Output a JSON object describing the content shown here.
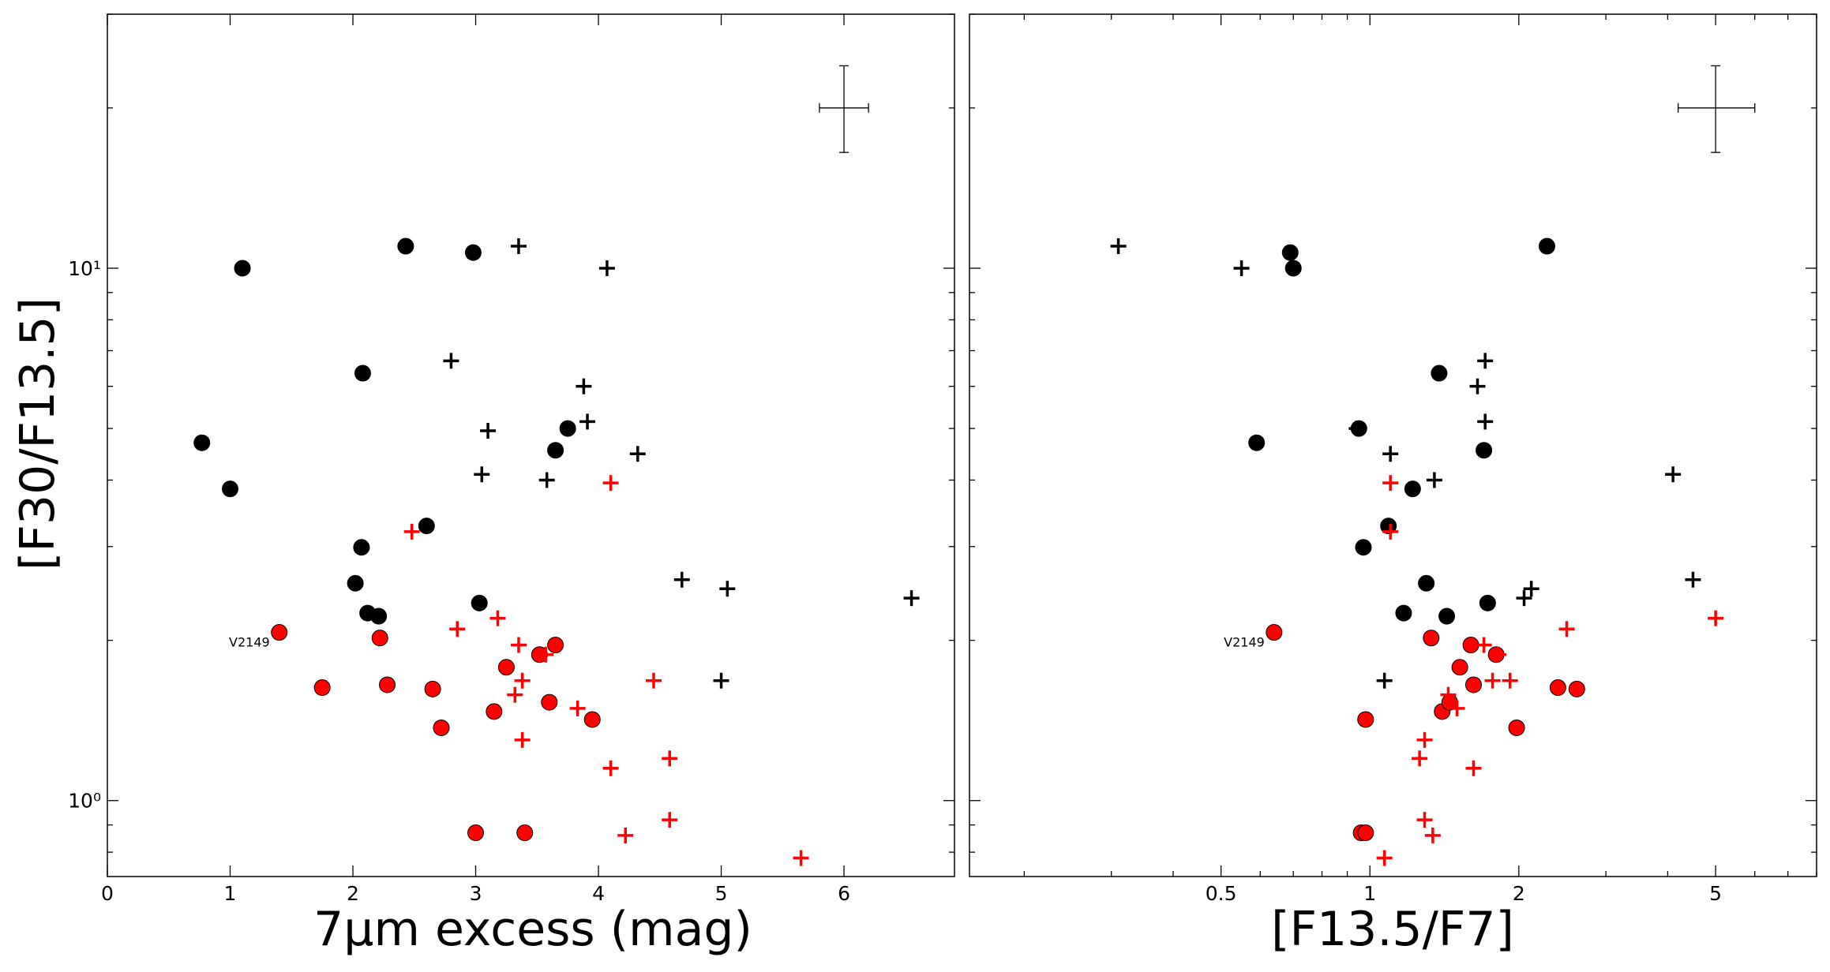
{
  "figure": {
    "colors": {
      "black": "#000000",
      "red": "#ff0000",
      "frame": "#000000"
    }
  },
  "chart_data": [
    {
      "type": "scatter",
      "panel": "left",
      "xlabel": "7μm excess (mag)",
      "ylabel": "[F30/F13.5]",
      "xscale": "linear",
      "yscale": "log",
      "xlim": [
        0,
        6.9
      ],
      "ylim": [
        0.72,
        30
      ],
      "xticks": [
        0,
        1,
        2,
        3,
        4,
        5,
        6
      ],
      "xtick_labels": [
        "0",
        "1",
        "2",
        "3",
        "4",
        "5",
        "6"
      ],
      "yticks": [
        1,
        10
      ],
      "ytick_labels": [
        "10⁰",
        "10¹"
      ],
      "grid": false,
      "annotation": {
        "text": "V2149",
        "x": 1.4,
        "y": 2.07
      },
      "error_bar": {
        "x": 6.0,
        "y": 20.0,
        "xerr": 0.2,
        "yerr_low": 3.5,
        "yerr_high": 4.0
      },
      "series": [
        {
          "name": "black-circles",
          "marker": "circle",
          "color": "#000000",
          "points": [
            [
              0.77,
              4.7
            ],
            [
              1.0,
              3.85
            ],
            [
              1.1,
              10.0
            ],
            [
              2.02,
              2.56
            ],
            [
              2.07,
              2.99
            ],
            [
              2.08,
              6.35
            ],
            [
              2.12,
              2.25
            ],
            [
              2.21,
              2.22
            ],
            [
              2.43,
              11.0
            ],
            [
              2.6,
              3.28
            ],
            [
              2.98,
              10.7
            ],
            [
              3.03,
              2.35
            ],
            [
              3.65,
              4.55
            ],
            [
              3.75,
              5.0
            ]
          ]
        },
        {
          "name": "black-crosses",
          "marker": "plus",
          "color": "#000000",
          "points": [
            [
              2.8,
              6.7
            ],
            [
              3.05,
              4.1
            ],
            [
              3.1,
              4.95
            ],
            [
              3.35,
              11.0
            ],
            [
              3.58,
              4.0
            ],
            [
              3.88,
              6.0
            ],
            [
              3.91,
              5.15
            ],
            [
              4.07,
              10.0
            ],
            [
              4.32,
              4.48
            ],
            [
              4.68,
              2.6
            ],
            [
              5.0,
              1.68
            ],
            [
              5.05,
              2.5
            ],
            [
              6.55,
              2.4
            ]
          ]
        },
        {
          "name": "red-circles",
          "marker": "circle",
          "color": "#ff0000",
          "points": [
            [
              1.4,
              2.07
            ],
            [
              1.75,
              1.63
            ],
            [
              2.22,
              2.02
            ],
            [
              2.28,
              1.65
            ],
            [
              2.65,
              1.62
            ],
            [
              2.72,
              1.37
            ],
            [
              3.0,
              0.87
            ],
            [
              3.15,
              1.47
            ],
            [
              3.25,
              1.78
            ],
            [
              3.4,
              0.87
            ],
            [
              3.52,
              1.88
            ],
            [
              3.6,
              1.53
            ],
            [
              3.65,
              1.96
            ],
            [
              3.95,
              1.42
            ]
          ]
        },
        {
          "name": "red-crosses",
          "marker": "plus",
          "color": "#ff0000",
          "points": [
            [
              2.48,
              3.2
            ],
            [
              2.85,
              2.1
            ],
            [
              3.18,
              2.2
            ],
            [
              3.32,
              1.58
            ],
            [
              3.35,
              1.96
            ],
            [
              3.38,
              1.68
            ],
            [
              3.38,
              1.3
            ],
            [
              3.57,
              1.88
            ],
            [
              3.83,
              1.49
            ],
            [
              4.1,
              1.15
            ],
            [
              4.1,
              3.95
            ],
            [
              4.22,
              0.86
            ],
            [
              4.45,
              1.68
            ],
            [
              4.58,
              1.2
            ],
            [
              4.58,
              0.92
            ],
            [
              5.65,
              0.78
            ]
          ]
        }
      ]
    },
    {
      "type": "scatter",
      "panel": "right",
      "xlabel": "[F13.5/F7]",
      "ylabel": "",
      "xscale": "log",
      "yscale": "log",
      "xlim": [
        0.155,
        8.0
      ],
      "ylim": [
        0.72,
        30
      ],
      "xticks": [
        0.5,
        1,
        2,
        5
      ],
      "xtick_labels": [
        "0.5",
        "1",
        "2",
        "5"
      ],
      "yticks": [
        1,
        10
      ],
      "ytick_labels": [
        "",
        ""
      ],
      "grid": false,
      "annotation": {
        "text": "V2149",
        "x": 0.64,
        "y": 2.07
      },
      "error_bar": {
        "x": 5.0,
        "y": 20.0,
        "xerr_low": 0.8,
        "xerr_high": 1.0,
        "yerr_low": 3.5,
        "yerr_high": 4.0
      },
      "series": [
        {
          "name": "black-circles",
          "marker": "circle",
          "color": "#000000",
          "points": [
            [
              0.59,
              4.7
            ],
            [
              0.69,
              10.7
            ],
            [
              0.7,
              10.0
            ],
            [
              0.95,
              5.0
            ],
            [
              0.97,
              2.99
            ],
            [
              1.09,
              3.28
            ],
            [
              1.17,
              2.25
            ],
            [
              1.22,
              3.85
            ],
            [
              1.3,
              2.56
            ],
            [
              1.38,
              6.35
            ],
            [
              1.43,
              2.22
            ],
            [
              1.7,
              4.55
            ],
            [
              1.73,
              2.35
            ],
            [
              2.28,
              11.0
            ]
          ]
        },
        {
          "name": "black-crosses",
          "marker": "plus",
          "color": "#000000",
          "points": [
            [
              0.31,
              11.0
            ],
            [
              0.55,
              10.0
            ],
            [
              0.94,
              5.0
            ],
            [
              1.07,
              1.68
            ],
            [
              1.1,
              4.48
            ],
            [
              1.35,
              4.0
            ],
            [
              1.65,
              6.0
            ],
            [
              1.71,
              6.7
            ],
            [
              1.71,
              5.15
            ],
            [
              2.05,
              2.4
            ],
            [
              2.12,
              2.5
            ],
            [
              4.1,
              4.1
            ],
            [
              4.5,
              2.6
            ]
          ]
        },
        {
          "name": "red-circles",
          "marker": "circle",
          "color": "#ff0000",
          "points": [
            [
              0.64,
              2.07
            ],
            [
              0.96,
              0.87
            ],
            [
              0.98,
              0.87
            ],
            [
              0.98,
              1.42
            ],
            [
              1.33,
              2.02
            ],
            [
              1.4,
              1.47
            ],
            [
              1.45,
              1.53
            ],
            [
              1.52,
              1.78
            ],
            [
              1.6,
              1.96
            ],
            [
              1.62,
              1.65
            ],
            [
              1.8,
              1.88
            ],
            [
              1.98,
              1.37
            ],
            [
              2.4,
              1.63
            ],
            [
              2.62,
              1.62
            ]
          ]
        },
        {
          "name": "red-crosses",
          "marker": "plus",
          "color": "#ff0000",
          "points": [
            [
              1.07,
              0.78
            ],
            [
              1.1,
              3.95
            ],
            [
              1.1,
              3.2
            ],
            [
              1.26,
              1.2
            ],
            [
              1.29,
              1.3
            ],
            [
              1.29,
              0.92
            ],
            [
              1.34,
              0.86
            ],
            [
              1.44,
              1.58
            ],
            [
              1.5,
              1.49
            ],
            [
              1.62,
              1.15
            ],
            [
              1.7,
              1.96
            ],
            [
              1.77,
              1.68
            ],
            [
              1.82,
              1.88
            ],
            [
              1.92,
              1.68
            ],
            [
              2.5,
              2.1
            ],
            [
              5.0,
              2.2
            ]
          ]
        }
      ]
    }
  ]
}
